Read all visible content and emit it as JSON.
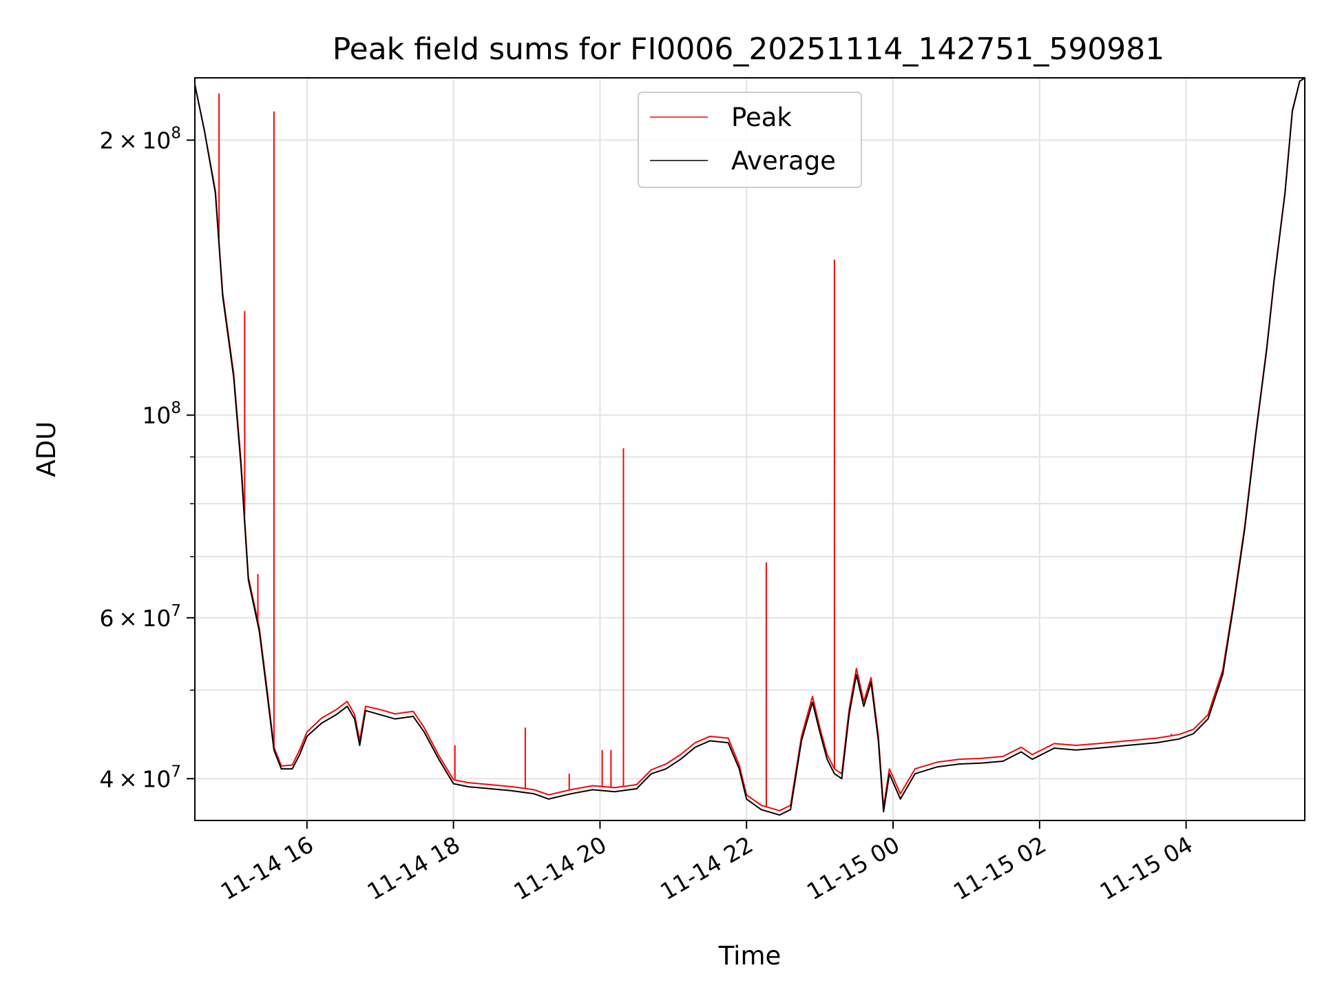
{
  "chart_data": {
    "type": "line",
    "title": "Peak field sums for FI0006_20251114_142751_590981",
    "xlabel": "Time",
    "ylabel": "ADU",
    "yscale": "log",
    "ylim": [
      36000000,
      234000000
    ],
    "xlim_hours": [
      14.47,
      29.62
    ],
    "grid": true,
    "legend_position": "top-center",
    "x_ticks": [
      {
        "hour": 16,
        "label": "11-14 16"
      },
      {
        "hour": 18,
        "label": "11-14 18"
      },
      {
        "hour": 20,
        "label": "11-14 20"
      },
      {
        "hour": 22,
        "label": "11-14 22"
      },
      {
        "hour": 24,
        "label": "11-15 00"
      },
      {
        "hour": 26,
        "label": "11-15 02"
      },
      {
        "hour": 28,
        "label": "11-15 04"
      }
    ],
    "y_ticks": [
      {
        "value": 40000000,
        "mantissa": "4",
        "exponent": "7",
        "sci": true
      },
      {
        "value": 60000000,
        "mantissa": "6",
        "exponent": "7",
        "sci": true
      },
      {
        "value": 100000000,
        "mantissa": "",
        "exponent": "8",
        "sci": false
      },
      {
        "value": 200000000,
        "mantissa": "2",
        "exponent": "8",
        "sci": true
      }
    ],
    "y_minor_ticks": [
      50000000,
      70000000,
      80000000,
      90000000
    ],
    "series": [
      {
        "name": "Average",
        "color": "#000000",
        "points": [
          [
            14.47,
            230000000
          ],
          [
            14.6,
            205000000
          ],
          [
            14.75,
            175000000
          ],
          [
            14.85,
            135000000
          ],
          [
            15.0,
            110000000
          ],
          [
            15.1,
            88000000
          ],
          [
            15.2,
            66000000
          ],
          [
            15.35,
            58000000
          ],
          [
            15.45,
            50000000
          ],
          [
            15.55,
            43000000
          ],
          [
            15.65,
            41000000
          ],
          [
            15.8,
            41000000
          ],
          [
            15.9,
            42500000
          ],
          [
            16.0,
            44500000
          ],
          [
            16.2,
            46000000
          ],
          [
            16.4,
            47000000
          ],
          [
            16.55,
            48000000
          ],
          [
            16.65,
            46500000
          ],
          [
            16.72,
            43500000
          ],
          [
            16.8,
            47500000
          ],
          [
            17.0,
            47000000
          ],
          [
            17.2,
            46500000
          ],
          [
            17.45,
            46800000
          ],
          [
            17.6,
            45000000
          ],
          [
            17.8,
            42000000
          ],
          [
            18.0,
            39500000
          ],
          [
            18.2,
            39200000
          ],
          [
            18.5,
            39000000
          ],
          [
            18.8,
            38800000
          ],
          [
            19.1,
            38500000
          ],
          [
            19.3,
            38000000
          ],
          [
            19.6,
            38500000
          ],
          [
            19.9,
            38900000
          ],
          [
            20.2,
            38700000
          ],
          [
            20.5,
            39000000
          ],
          [
            20.7,
            40500000
          ],
          [
            20.9,
            41000000
          ],
          [
            21.1,
            42000000
          ],
          [
            21.3,
            43300000
          ],
          [
            21.5,
            44000000
          ],
          [
            21.75,
            43800000
          ],
          [
            21.9,
            41000000
          ],
          [
            22.0,
            38000000
          ],
          [
            22.2,
            37000000
          ],
          [
            22.3,
            36800000
          ],
          [
            22.45,
            36500000
          ],
          [
            22.6,
            37000000
          ],
          [
            22.75,
            44000000
          ],
          [
            22.9,
            48500000
          ],
          [
            23.0,
            45000000
          ],
          [
            23.1,
            42000000
          ],
          [
            23.2,
            40500000
          ],
          [
            23.3,
            40000000
          ],
          [
            23.4,
            47000000
          ],
          [
            23.5,
            52000000
          ],
          [
            23.6,
            48000000
          ],
          [
            23.7,
            51000000
          ],
          [
            23.8,
            44000000
          ],
          [
            23.87,
            36800000
          ],
          [
            23.95,
            40500000
          ],
          [
            24.1,
            38000000
          ],
          [
            24.3,
            40500000
          ],
          [
            24.6,
            41200000
          ],
          [
            24.9,
            41500000
          ],
          [
            25.2,
            41600000
          ],
          [
            25.5,
            41800000
          ],
          [
            25.75,
            42800000
          ],
          [
            25.9,
            42000000
          ],
          [
            26.2,
            43200000
          ],
          [
            26.5,
            43000000
          ],
          [
            26.8,
            43200000
          ],
          [
            27.2,
            43500000
          ],
          [
            27.6,
            43800000
          ],
          [
            27.9,
            44200000
          ],
          [
            28.1,
            44800000
          ],
          [
            28.3,
            46500000
          ],
          [
            28.5,
            52000000
          ],
          [
            28.65,
            62000000
          ],
          [
            28.8,
            75000000
          ],
          [
            28.95,
            95000000
          ],
          [
            29.1,
            118000000
          ],
          [
            29.2,
            140000000
          ],
          [
            29.35,
            175000000
          ],
          [
            29.45,
            215000000
          ],
          [
            29.55,
            232000000
          ],
          [
            29.62,
            234000000
          ]
        ]
      },
      {
        "name": "Peak",
        "color": "#ff0000",
        "points": [
          [
            14.47,
            230000000
          ],
          [
            14.6,
            205000000
          ],
          [
            14.75,
            176000000
          ],
          [
            14.85,
            136000000
          ],
          [
            15.0,
            111000000
          ],
          [
            15.1,
            89000000
          ],
          [
            15.2,
            66500000
          ],
          [
            15.35,
            58500000
          ],
          [
            15.45,
            50500000
          ],
          [
            15.55,
            43300000
          ],
          [
            15.65,
            41300000
          ],
          [
            15.8,
            41400000
          ],
          [
            15.9,
            43000000
          ],
          [
            16.0,
            45000000
          ],
          [
            16.2,
            46600000
          ],
          [
            16.4,
            47600000
          ],
          [
            16.55,
            48600000
          ],
          [
            16.65,
            47000000
          ],
          [
            16.72,
            44000000
          ],
          [
            16.8,
            48000000
          ],
          [
            17.0,
            47600000
          ],
          [
            17.2,
            47100000
          ],
          [
            17.45,
            47400000
          ],
          [
            17.6,
            45500000
          ],
          [
            17.8,
            42400000
          ],
          [
            18.0,
            39900000
          ],
          [
            18.2,
            39600000
          ],
          [
            18.5,
            39400000
          ],
          [
            18.8,
            39200000
          ],
          [
            19.1,
            38900000
          ],
          [
            19.3,
            38400000
          ],
          [
            19.6,
            38900000
          ],
          [
            19.9,
            39300000
          ],
          [
            20.2,
            39100000
          ],
          [
            20.5,
            39400000
          ],
          [
            20.7,
            40900000
          ],
          [
            20.9,
            41500000
          ],
          [
            21.1,
            42500000
          ],
          [
            21.3,
            43800000
          ],
          [
            21.5,
            44500000
          ],
          [
            21.75,
            44300000
          ],
          [
            21.9,
            41400000
          ],
          [
            22.0,
            38400000
          ],
          [
            22.2,
            37400000
          ],
          [
            22.3,
            37200000
          ],
          [
            22.45,
            36900000
          ],
          [
            22.6,
            37400000
          ],
          [
            22.75,
            44500000
          ],
          [
            22.9,
            49200000
          ],
          [
            23.0,
            45500000
          ],
          [
            23.1,
            42500000
          ],
          [
            23.2,
            41000000
          ],
          [
            23.3,
            40500000
          ],
          [
            23.4,
            47600000
          ],
          [
            23.5,
            52800000
          ],
          [
            23.6,
            48600000
          ],
          [
            23.7,
            51600000
          ],
          [
            23.8,
            44500000
          ],
          [
            23.87,
            37200000
          ],
          [
            23.95,
            41000000
          ],
          [
            24.1,
            38500000
          ],
          [
            24.3,
            41000000
          ],
          [
            24.6,
            41700000
          ],
          [
            24.9,
            42000000
          ],
          [
            25.2,
            42100000
          ],
          [
            25.5,
            42300000
          ],
          [
            25.75,
            43300000
          ],
          [
            25.9,
            42500000
          ],
          [
            26.2,
            43700000
          ],
          [
            26.5,
            43500000
          ],
          [
            26.8,
            43700000
          ],
          [
            27.2,
            44000000
          ],
          [
            27.6,
            44300000
          ],
          [
            27.9,
            44700000
          ],
          [
            28.1,
            45300000
          ],
          [
            28.3,
            47000000
          ],
          [
            28.5,
            52600000
          ],
          [
            28.65,
            62500000
          ],
          [
            28.8,
            75500000
          ],
          [
            28.95,
            95500000
          ],
          [
            29.1,
            118500000
          ],
          [
            29.2,
            140500000
          ],
          [
            29.35,
            175500000
          ],
          [
            29.45,
            215500000
          ],
          [
            29.55,
            232000000
          ],
          [
            29.62,
            234000000
          ]
        ],
        "spikes": [
          [
            14.8,
            225000000
          ],
          [
            15.15,
            130000000
          ],
          [
            15.33,
            67000000
          ],
          [
            15.55,
            215000000
          ],
          [
            18.02,
            43500000
          ],
          [
            18.98,
            45500000
          ],
          [
            19.58,
            40500000
          ],
          [
            20.03,
            43000000
          ],
          [
            20.15,
            43000000
          ],
          [
            20.32,
            92000000
          ],
          [
            22.27,
            69000000
          ],
          [
            23.2,
            148000000
          ],
          [
            27.8,
            44800000
          ]
        ]
      }
    ]
  }
}
